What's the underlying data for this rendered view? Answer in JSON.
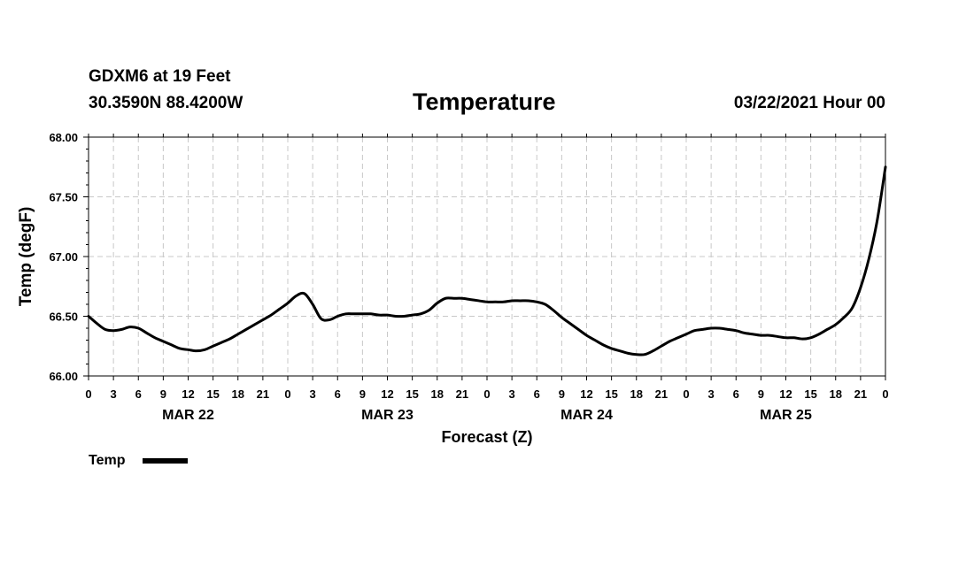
{
  "header": {
    "station": "GDXM6 at 19 Feet",
    "location": "30.3590N 88.4200W",
    "run_date": "03/22/2021 Hour 00"
  },
  "chart_data": {
    "type": "line",
    "title": "Temperature",
    "xlabel": "Forecast (Z)",
    "ylabel": "Temp (degF)",
    "ylim": [
      66.0,
      68.0
    ],
    "xlim_hours": [
      0,
      96
    ],
    "grid": true,
    "y_ticks": [
      {
        "value": 66.0,
        "label": "66.00"
      },
      {
        "value": 66.5,
        "label": "66.50"
      },
      {
        "value": 67.0,
        "label": "67.00"
      },
      {
        "value": 67.5,
        "label": "67.50"
      },
      {
        "value": 68.0,
        "label": "68.00"
      }
    ],
    "x_ticks": [
      {
        "hour": 0,
        "label": "0"
      },
      {
        "hour": 3,
        "label": "3"
      },
      {
        "hour": 6,
        "label": "6"
      },
      {
        "hour": 9,
        "label": "9"
      },
      {
        "hour": 12,
        "label": "12"
      },
      {
        "hour": 15,
        "label": "15"
      },
      {
        "hour": 18,
        "label": "18"
      },
      {
        "hour": 21,
        "label": "21"
      },
      {
        "hour": 24,
        "label": "0"
      },
      {
        "hour": 27,
        "label": "3"
      },
      {
        "hour": 30,
        "label": "6"
      },
      {
        "hour": 33,
        "label": "9"
      },
      {
        "hour": 36,
        "label": "12"
      },
      {
        "hour": 39,
        "label": "15"
      },
      {
        "hour": 42,
        "label": "18"
      },
      {
        "hour": 45,
        "label": "21"
      },
      {
        "hour": 48,
        "label": "0"
      },
      {
        "hour": 51,
        "label": "3"
      },
      {
        "hour": 54,
        "label": "6"
      },
      {
        "hour": 57,
        "label": "9"
      },
      {
        "hour": 60,
        "label": "12"
      },
      {
        "hour": 63,
        "label": "15"
      },
      {
        "hour": 66,
        "label": "18"
      },
      {
        "hour": 69,
        "label": "21"
      },
      {
        "hour": 72,
        "label": "0"
      },
      {
        "hour": 75,
        "label": "3"
      },
      {
        "hour": 78,
        "label": "6"
      },
      {
        "hour": 81,
        "label": "9"
      },
      {
        "hour": 84,
        "label": "12"
      },
      {
        "hour": 87,
        "label": "15"
      },
      {
        "hour": 90,
        "label": "18"
      },
      {
        "hour": 93,
        "label": "21"
      },
      {
        "hour": 96,
        "label": "0"
      }
    ],
    "date_labels": [
      {
        "hour": 12,
        "label": "MAR 22"
      },
      {
        "hour": 36,
        "label": "MAR 23"
      },
      {
        "hour": 60,
        "label": "MAR 24"
      },
      {
        "hour": 84,
        "label": "MAR 25"
      }
    ],
    "series": [
      {
        "name": "Temp",
        "x": [
          0,
          1,
          2,
          3,
          4,
          5,
          6,
          7,
          8,
          9,
          10,
          11,
          12,
          13,
          14,
          15,
          16,
          17,
          18,
          19,
          20,
          21,
          22,
          23,
          24,
          25,
          26,
          27,
          28,
          29,
          30,
          31,
          32,
          33,
          34,
          35,
          36,
          37,
          38,
          39,
          40,
          41,
          42,
          43,
          44,
          45,
          46,
          47,
          48,
          49,
          50,
          51,
          52,
          53,
          54,
          55,
          56,
          57,
          58,
          59,
          60,
          61,
          62,
          63,
          64,
          65,
          66,
          67,
          68,
          69,
          70,
          71,
          72,
          73,
          74,
          75,
          76,
          77,
          78,
          79,
          80,
          81,
          82,
          83,
          84,
          85,
          86,
          87,
          88,
          89,
          90,
          91,
          92,
          93,
          94,
          95,
          96
        ],
        "values": [
          66.5,
          66.44,
          66.39,
          66.38,
          66.39,
          66.41,
          66.4,
          66.36,
          66.32,
          66.29,
          66.26,
          66.23,
          66.22,
          66.21,
          66.22,
          66.25,
          66.28,
          66.31,
          66.35,
          66.39,
          66.43,
          66.47,
          66.51,
          66.56,
          66.61,
          66.67,
          66.69,
          66.6,
          66.48,
          66.47,
          66.5,
          66.52,
          66.52,
          66.52,
          66.52,
          66.51,
          66.51,
          66.5,
          66.5,
          66.51,
          66.52,
          66.55,
          66.61,
          66.65,
          66.65,
          66.65,
          66.64,
          66.63,
          66.62,
          66.62,
          66.62,
          66.63,
          66.63,
          66.63,
          66.62,
          66.6,
          66.55,
          66.49,
          66.44,
          66.39,
          66.34,
          66.3,
          66.26,
          66.23,
          66.21,
          66.19,
          66.18,
          66.18,
          66.21,
          66.25,
          66.29,
          66.32,
          66.35,
          66.38,
          66.39,
          66.4,
          66.4,
          66.39,
          66.38,
          66.36,
          66.35,
          66.34,
          66.34,
          66.33,
          66.32,
          66.32,
          66.31,
          66.32,
          66.35,
          66.39,
          66.43,
          66.49,
          66.57,
          66.74,
          66.98,
          67.3,
          67.75
        ]
      }
    ],
    "legend": {
      "label": "Temp",
      "position": "bottom-left"
    }
  }
}
